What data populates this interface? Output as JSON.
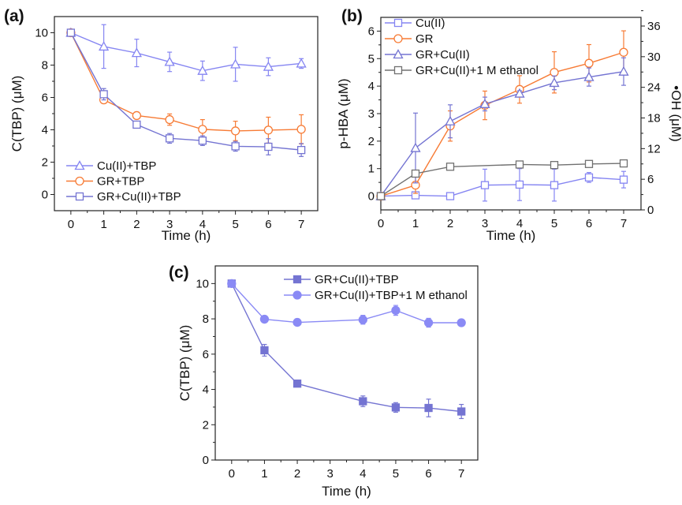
{
  "colors": {
    "blue": "#8585f2",
    "orange": "#f77b35",
    "purple": "#7474d2",
    "gray": "#707070",
    "axis": "#222222"
  },
  "chart_data": [
    {
      "panel_label": "(a)",
      "type": "line",
      "xlabel": "Time (h)",
      "ylabel": "C(TBP) (μM)",
      "xlim": [
        -0.5,
        7.5
      ],
      "ylim": [
        -1,
        11
      ],
      "xticks": [
        0,
        1,
        2,
        3,
        4,
        5,
        6,
        7
      ],
      "yticks": [
        0,
        2,
        4,
        6,
        8,
        10
      ],
      "legend_position": "bottom-left",
      "series": [
        {
          "name": "Cu(II)+TBP",
          "marker": "triangle",
          "color": "#8585f2",
          "x": [
            0,
            1,
            2,
            3,
            4,
            5,
            6,
            7
          ],
          "y": [
            10,
            9.15,
            8.75,
            8.2,
            7.65,
            8.05,
            7.9,
            8.1
          ],
          "err": [
            0,
            1.35,
            0.85,
            0.6,
            0.6,
            1.05,
            0.55,
            0.3
          ]
        },
        {
          "name": "GR+TBP",
          "marker": "circle",
          "color": "#f77b35",
          "x": [
            0,
            1,
            2,
            3,
            4,
            5,
            6,
            7
          ],
          "y": [
            10,
            5.85,
            4.88,
            4.63,
            4.03,
            3.93,
            3.98,
            4.03
          ],
          "err": [
            0,
            0.1,
            0.1,
            0.35,
            0.6,
            0.6,
            0.8,
            0.9
          ]
        },
        {
          "name": "GR+Cu(II)+TBP",
          "marker": "square",
          "color": "#7474d2",
          "x": [
            0,
            1,
            2,
            3,
            4,
            5,
            6,
            7
          ],
          "y": [
            10,
            6.2,
            4.32,
            3.47,
            3.33,
            2.98,
            2.95,
            2.75
          ],
          "err": [
            0,
            0.35,
            0.1,
            0.3,
            0.3,
            0.3,
            0.5,
            0.4
          ]
        }
      ]
    },
    {
      "panel_label": "(b)",
      "type": "line",
      "xlabel": "Time (h)",
      "ylabel": "p-HBA (μM)",
      "y2label": "•OH (μM)",
      "xlim": [
        0,
        7.5
      ],
      "ylim": [
        -0.5,
        6.5
      ],
      "y2lim": [
        0,
        37.7
      ],
      "xticks": [
        0,
        1,
        2,
        3,
        4,
        5,
        6,
        7
      ],
      "yticks": [
        0,
        1,
        2,
        3,
        4,
        5,
        6
      ],
      "y2ticks": [
        0,
        6,
        12,
        18,
        24,
        30,
        36
      ],
      "legend_position": "top-left",
      "series": [
        {
          "name": "Cu(II)",
          "marker": "square",
          "color": "#8585f2",
          "x": [
            0,
            1,
            2,
            3,
            4,
            5,
            6,
            7
          ],
          "y": [
            0,
            0.03,
            0,
            0.4,
            0.42,
            0.4,
            0.68,
            0.6
          ],
          "err": [
            0,
            0.05,
            0,
            0.58,
            0.58,
            0.58,
            0.18,
            0.3
          ]
        },
        {
          "name": "GR",
          "marker": "circle",
          "color": "#f77b35",
          "x": [
            0,
            1,
            2,
            3,
            4,
            5,
            6,
            7
          ],
          "y": [
            0,
            0.4,
            2.55,
            3.3,
            3.88,
            4.5,
            4.83,
            5.23
          ],
          "err": [
            0,
            0.3,
            0.55,
            0.52,
            0.5,
            0.75,
            0.68,
            0.78
          ]
        },
        {
          "name": "GR+Cu(II)",
          "marker": "triangle",
          "color": "#7474d2",
          "x": [
            0,
            1,
            2,
            3,
            4,
            5,
            6,
            7
          ],
          "y": [
            0,
            1.75,
            2.72,
            3.35,
            3.73,
            4.12,
            4.33,
            4.53
          ],
          "err": [
            0,
            1.27,
            0.6,
            0.25,
            0.1,
            0.25,
            0.33,
            0.5
          ]
        },
        {
          "name": "GR+Cu(II)+1 M ethanol",
          "marker": "square",
          "color": "#707070",
          "x": [
            0,
            1,
            2,
            4,
            5,
            6,
            7
          ],
          "y": [
            0,
            0.82,
            1.07,
            1.15,
            1.13,
            1.17,
            1.19
          ],
          "err": [
            0,
            0.05,
            0.04,
            0.05,
            0.04,
            0.03,
            0.03
          ]
        }
      ]
    },
    {
      "panel_label": "(c)",
      "type": "line",
      "xlabel": "Time (h)",
      "ylabel": "C(TBP) (μM)",
      "xlim": [
        -0.5,
        7.5
      ],
      "ylim": [
        0,
        11
      ],
      "xticks": [
        0,
        1,
        2,
        3,
        4,
        5,
        6,
        7
      ],
      "yticks": [
        0,
        2,
        4,
        6,
        8,
        10
      ],
      "legend_position": "top-right",
      "series": [
        {
          "name": "GR+Cu(II)+TBP",
          "marker": "filled-square",
          "color": "#7474d2",
          "x": [
            0,
            1,
            2,
            4,
            5,
            6,
            7
          ],
          "y": [
            10,
            6.22,
            4.33,
            3.33,
            2.98,
            2.95,
            2.75
          ],
          "err": [
            0,
            0.33,
            0.05,
            0.3,
            0.27,
            0.5,
            0.4
          ]
        },
        {
          "name": "GR+Cu(II)+TBP+1 M ethanol",
          "marker": "filled-circle",
          "color": "#8a8af5",
          "x": [
            0,
            1,
            2,
            4,
            5,
            6,
            7
          ],
          "y": [
            10,
            7.98,
            7.8,
            7.95,
            8.48,
            7.78,
            7.78
          ],
          "err": [
            0,
            0.1,
            0,
            0.25,
            0.28,
            0.25,
            0.05
          ]
        }
      ]
    }
  ]
}
